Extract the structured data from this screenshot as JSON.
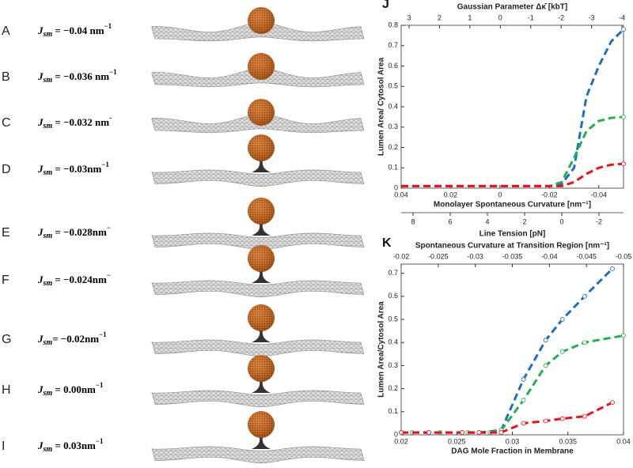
{
  "panels": [
    {
      "letter": "A",
      "symbol": "J",
      "sub": "sm",
      "value": " = −0.04 nm",
      "sup": "−1"
    },
    {
      "letter": "B",
      "symbol": "J",
      "sub": "sm",
      "value": " = −0.036 nm",
      "sup": "−1"
    },
    {
      "letter": "C",
      "symbol": "J",
      "sub": "sm",
      "value": " = −0.032 nm",
      "sup": "-"
    },
    {
      "letter": "D",
      "symbol": "J",
      "sub": "sm",
      "value": " = −0.03nm",
      "sup": "−1"
    },
    {
      "letter": "E",
      "symbol": "J",
      "sub": "sm",
      "value": " = −0.028nm",
      "sup": "−"
    },
    {
      "letter": "F",
      "symbol": "J",
      "sub": "sm",
      "value": " = −0.024nm",
      "sup": "−"
    },
    {
      "letter": "G",
      "symbol": "J",
      "sub": "sm",
      "value": "= −0.02nm",
      "sup": "−1"
    },
    {
      "letter": "H",
      "symbol": "J",
      "sub": "sm",
      "value": " = 0.00nm",
      "sup": "−1"
    },
    {
      "letter": "I",
      "symbol": "J",
      "sub": "sm",
      "value": " = 0.03nm",
      "sup": "−1"
    }
  ],
  "chart_data": [
    {
      "type": "line",
      "panel": "J",
      "marker": "end",
      "xlabel": "Monolayer Spontaneous Curvature [nm⁻¹]",
      "ylabel": "Lumen Area/ Cytosol Area",
      "x2label": "Gaussian Parameter Δκ̄ [kbT]",
      "x3label": "Line Tension [pN]",
      "xlim": [
        0.04,
        -0.05
      ],
      "xticks": [
        0.04,
        0.02,
        0,
        -0.02,
        -0.04
      ],
      "x2lim": [
        3.26,
        -4.05
      ],
      "x2ticks": [
        3,
        2,
        1,
        0,
        -1,
        -2,
        -3,
        -4
      ],
      "x3lim": [
        8.64,
        -3.32
      ],
      "x3ticks": [
        8,
        6,
        4,
        2,
        0,
        -2
      ],
      "ylim": [
        0,
        0.8
      ],
      "yticks": [
        0,
        0.1,
        0.2,
        0.3,
        0.4,
        0.5,
        0.6,
        0.7,
        0.8
      ],
      "series": [
        {
          "color": "#1f6fbf",
          "x": [
            0.04,
            0.02,
            0,
            -0.02,
            -0.025,
            -0.03,
            -0.035,
            -0.04,
            -0.045,
            -0.05
          ],
          "values": [
            0.01,
            0.01,
            0.01,
            0.01,
            0.02,
            0.1,
            0.45,
            0.6,
            0.72,
            0.78
          ]
        },
        {
          "color": "#22b14c",
          "x": [
            0.04,
            0.02,
            0,
            -0.02,
            -0.025,
            -0.03,
            -0.035,
            -0.04,
            -0.045,
            -0.05
          ],
          "values": [
            0.01,
            0.01,
            0.01,
            0.01,
            0.03,
            0.15,
            0.28,
            0.33,
            0.345,
            0.35
          ]
        },
        {
          "color": "#e8141c",
          "x": [
            0.04,
            0.02,
            0,
            -0.02,
            -0.025,
            -0.03,
            -0.035,
            -0.04,
            -0.045,
            -0.05
          ],
          "values": [
            0.01,
            0.01,
            0.01,
            0.01,
            0.01,
            0.03,
            0.07,
            0.1,
            0.115,
            0.12
          ]
        }
      ]
    },
    {
      "type": "line",
      "panel": "K",
      "marker": "all",
      "xlabel": "DAG Mole Fraction in Membrane",
      "ylabel": "Lumen Area/Cytosol Area",
      "x2label": "Spontaneous Curvature at Transition Region [nm⁻¹]",
      "xlim": [
        0.02,
        0.04
      ],
      "xticks": [
        0.02,
        0.025,
        0.03,
        0.035,
        0.04
      ],
      "x2lim": [
        -0.02,
        -0.05
      ],
      "x2ticks": [
        -0.02,
        -0.025,
        -0.03,
        -0.035,
        -0.04,
        -0.045,
        -0.05
      ],
      "ylim": [
        0,
        0.74
      ],
      "yticks": [
        0,
        0.1,
        0.2,
        0.3,
        0.4,
        0.5,
        0.6,
        0.7
      ],
      "series": [
        {
          "color": "#1f6fbf",
          "x": [
            0.02,
            0.0225,
            0.0255,
            0.027,
            0.029,
            0.031,
            0.033,
            0.0345,
            0.0365,
            0.039
          ],
          "values": [
            0.01,
            0.01,
            0.01,
            0.01,
            0.02,
            0.24,
            0.41,
            0.5,
            0.6,
            0.72
          ]
        },
        {
          "color": "#22b14c",
          "x": [
            0.021,
            0.0235,
            0.026,
            0.028,
            0.029,
            0.031,
            0.033,
            0.0345,
            0.0365,
            0.04
          ],
          "values": [
            0.01,
            0.01,
            0.01,
            0.01,
            0.02,
            0.15,
            0.3,
            0.36,
            0.4,
            0.43
          ]
        },
        {
          "color": "#e8141c",
          "x": [
            0.02,
            0.0225,
            0.0255,
            0.027,
            0.029,
            0.031,
            0.033,
            0.0345,
            0.0365,
            0.039
          ],
          "values": [
            0.01,
            0.01,
            0.01,
            0.01,
            0.01,
            0.05,
            0.06,
            0.07,
            0.08,
            0.14
          ]
        }
      ]
    }
  ]
}
